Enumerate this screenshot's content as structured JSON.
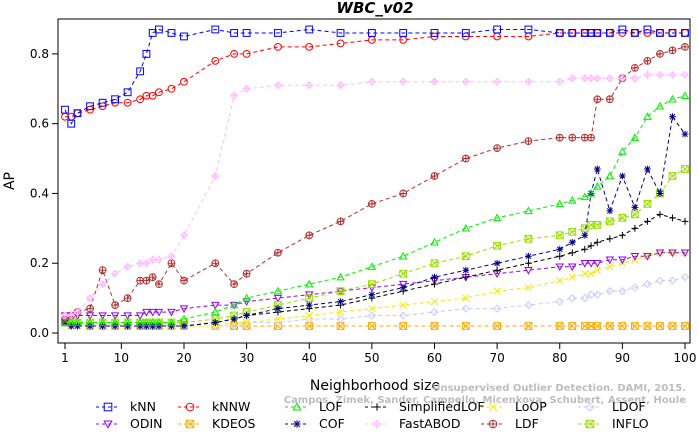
{
  "chart_data": {
    "type": "line",
    "title": "WBC_v02",
    "xlabel": "Neighborhood size",
    "ylabel": "AP",
    "xlim": [
      1,
      100
    ],
    "ylim": [
      0,
      0.9
    ],
    "x_ticks": [
      1,
      10,
      20,
      30,
      40,
      50,
      60,
      70,
      80,
      90,
      100
    ],
    "x_tick_labels": [
      "1",
      "10",
      "20",
      "30",
      "40",
      "50",
      "60",
      "70",
      "80",
      "90",
      "100"
    ],
    "y_ticks": [
      0.0,
      0.2,
      0.4,
      0.6,
      0.8
    ],
    "y_tick_labels": [
      "0.0",
      "0.2",
      "0.4",
      "0.6",
      "0.8"
    ],
    "grid": false,
    "legend_position": "bottom",
    "citation": "Campos, Zimek, Sander, Campello, Micenkova, Schubert, Assent, Houle",
    "citation_ref": "Unsupervised Outlier Detection. DAMI, 2015.",
    "x_sample": [
      1,
      2,
      3,
      5,
      7,
      9,
      11,
      13,
      14,
      15,
      16,
      18,
      20,
      25,
      28,
      30,
      35,
      40,
      45,
      50,
      55,
      60,
      65,
      70,
      75,
      80,
      82,
      84,
      85,
      86,
      88,
      90,
      92,
      94,
      96,
      98,
      100
    ],
    "series": [
      {
        "name": "kNN",
        "color": "#0000ff",
        "marker": "square",
        "values": [
          0.64,
          0.6,
          0.63,
          0.65,
          0.66,
          0.67,
          0.69,
          0.75,
          0.8,
          0.86,
          0.87,
          0.86,
          0.85,
          0.87,
          0.86,
          0.86,
          0.86,
          0.87,
          0.86,
          0.86,
          0.86,
          0.86,
          0.86,
          0.87,
          0.87,
          0.86,
          0.86,
          0.86,
          0.86,
          0.86,
          0.86,
          0.87,
          0.86,
          0.87,
          0.86,
          0.86,
          0.86
        ]
      },
      {
        "name": "kNNW",
        "color": "#ff0000",
        "marker": "circle",
        "values": [
          0.62,
          0.62,
          0.63,
          0.64,
          0.65,
          0.66,
          0.66,
          0.67,
          0.68,
          0.68,
          0.69,
          0.7,
          0.72,
          0.78,
          0.8,
          0.8,
          0.82,
          0.82,
          0.83,
          0.84,
          0.84,
          0.85,
          0.85,
          0.85,
          0.85,
          0.86,
          0.86,
          0.86,
          0.86,
          0.86,
          0.86,
          0.86,
          0.86,
          0.86,
          0.86,
          0.86,
          0.86
        ]
      },
      {
        "name": "LOF",
        "color": "#00ee00",
        "marker": "triangle",
        "values": [
          0.03,
          0.03,
          0.03,
          0.03,
          0.03,
          0.03,
          0.03,
          0.03,
          0.03,
          0.03,
          0.03,
          0.03,
          0.04,
          0.06,
          0.08,
          0.1,
          0.12,
          0.14,
          0.16,
          0.19,
          0.22,
          0.26,
          0.3,
          0.33,
          0.35,
          0.37,
          0.38,
          0.39,
          0.4,
          0.42,
          0.45,
          0.52,
          0.56,
          0.62,
          0.65,
          0.67,
          0.68
        ]
      },
      {
        "name": "SimplifiedLOF",
        "color": "#000000",
        "marker": "plus",
        "values": [
          0.03,
          0.02,
          0.02,
          0.02,
          0.02,
          0.02,
          0.02,
          0.02,
          0.02,
          0.02,
          0.02,
          0.02,
          0.02,
          0.03,
          0.04,
          0.05,
          0.06,
          0.07,
          0.08,
          0.1,
          0.12,
          0.14,
          0.16,
          0.18,
          0.2,
          0.22,
          0.23,
          0.24,
          0.25,
          0.26,
          0.27,
          0.28,
          0.3,
          0.32,
          0.34,
          0.33,
          0.32
        ]
      },
      {
        "name": "LoOP",
        "color": "#eeee00",
        "marker": "x",
        "values": [
          0.03,
          0.02,
          0.02,
          0.02,
          0.02,
          0.02,
          0.02,
          0.02,
          0.02,
          0.02,
          0.02,
          0.02,
          0.02,
          0.02,
          0.03,
          0.03,
          0.04,
          0.05,
          0.06,
          0.07,
          0.08,
          0.09,
          0.1,
          0.12,
          0.13,
          0.15,
          0.16,
          0.17,
          0.17,
          0.18,
          0.19,
          0.2,
          0.21,
          0.22,
          0.23,
          0.23,
          0.23
        ]
      },
      {
        "name": "LDOF",
        "color": "#c8c8ff",
        "marker": "diamond",
        "values": [
          0.03,
          0.02,
          0.02,
          0.02,
          0.02,
          0.02,
          0.02,
          0.02,
          0.02,
          0.02,
          0.02,
          0.02,
          0.02,
          0.02,
          0.02,
          0.03,
          0.03,
          0.04,
          0.04,
          0.05,
          0.05,
          0.06,
          0.07,
          0.07,
          0.08,
          0.09,
          0.1,
          0.1,
          0.11,
          0.11,
          0.12,
          0.12,
          0.13,
          0.14,
          0.15,
          0.15,
          0.16
        ]
      },
      {
        "name": "ODIN",
        "color": "#9900ee",
        "marker": "triangle-down",
        "values": [
          0.05,
          0.05,
          0.05,
          0.05,
          0.05,
          0.05,
          0.05,
          0.05,
          0.06,
          0.06,
          0.06,
          0.06,
          0.07,
          0.08,
          0.08,
          0.09,
          0.1,
          0.11,
          0.12,
          0.13,
          0.14,
          0.15,
          0.16,
          0.17,
          0.18,
          0.19,
          0.19,
          0.2,
          0.2,
          0.2,
          0.21,
          0.21,
          0.22,
          0.22,
          0.23,
          0.23,
          0.23
        ]
      },
      {
        "name": "KDEOS",
        "color": "#ffaa00",
        "marker": "square-x",
        "values": [
          0.03,
          0.03,
          0.03,
          0.02,
          0.02,
          0.02,
          0.02,
          0.02,
          0.02,
          0.02,
          0.02,
          0.02,
          0.02,
          0.02,
          0.02,
          0.02,
          0.02,
          0.02,
          0.02,
          0.02,
          0.02,
          0.02,
          0.02,
          0.02,
          0.02,
          0.02,
          0.02,
          0.02,
          0.02,
          0.02,
          0.02,
          0.02,
          0.02,
          0.02,
          0.02,
          0.02,
          0.02
        ]
      },
      {
        "name": "COF",
        "color": "#000080",
        "marker": "star",
        "values": [
          0.03,
          0.02,
          0.02,
          0.02,
          0.02,
          0.02,
          0.02,
          0.02,
          0.02,
          0.02,
          0.02,
          0.02,
          0.02,
          0.03,
          0.04,
          0.05,
          0.07,
          0.08,
          0.09,
          0.11,
          0.13,
          0.16,
          0.18,
          0.2,
          0.22,
          0.24,
          0.26,
          0.28,
          0.4,
          0.47,
          0.35,
          0.45,
          0.36,
          0.47,
          0.4,
          0.62,
          0.57
        ]
      },
      {
        "name": "FastABOD",
        "color": "#ffbbff",
        "marker": "diamond-plus",
        "values": [
          0.05,
          0.05,
          0.06,
          0.1,
          0.14,
          0.17,
          0.19,
          0.2,
          0.2,
          0.21,
          0.21,
          0.22,
          0.28,
          0.45,
          0.68,
          0.7,
          0.71,
          0.71,
          0.71,
          0.72,
          0.72,
          0.72,
          0.72,
          0.72,
          0.72,
          0.72,
          0.73,
          0.73,
          0.73,
          0.73,
          0.73,
          0.73,
          0.73,
          0.74,
          0.74,
          0.74,
          0.74
        ]
      },
      {
        "name": "LDF",
        "color": "#b03030",
        "marker": "circle-plus",
        "values": [
          0.04,
          0.05,
          0.06,
          0.07,
          0.18,
          0.08,
          0.1,
          0.15,
          0.15,
          0.16,
          0.14,
          0.2,
          0.15,
          0.2,
          0.14,
          0.17,
          0.23,
          0.28,
          0.32,
          0.37,
          0.4,
          0.45,
          0.5,
          0.53,
          0.55,
          0.56,
          0.56,
          0.56,
          0.56,
          0.67,
          0.67,
          0.73,
          0.76,
          0.78,
          0.8,
          0.81,
          0.82
        ]
      },
      {
        "name": "INFLO",
        "color": "#99dd00",
        "marker": "square-x",
        "values": [
          0.03,
          0.03,
          0.03,
          0.03,
          0.03,
          0.03,
          0.03,
          0.03,
          0.03,
          0.03,
          0.03,
          0.03,
          0.03,
          0.04,
          0.05,
          0.06,
          0.08,
          0.1,
          0.12,
          0.14,
          0.17,
          0.2,
          0.22,
          0.25,
          0.27,
          0.28,
          0.29,
          0.3,
          0.31,
          0.31,
          0.32,
          0.33,
          0.34,
          0.37,
          0.4,
          0.45,
          0.47
        ]
      }
    ],
    "legend_rows": [
      [
        "kNN",
        "kNNW",
        "LOF",
        "SimplifiedLOF",
        "LoOP",
        "LDOF"
      ],
      [
        "ODIN",
        "KDEOS",
        "COF",
        "FastABOD",
        "LDF",
        "INFLO"
      ]
    ]
  }
}
